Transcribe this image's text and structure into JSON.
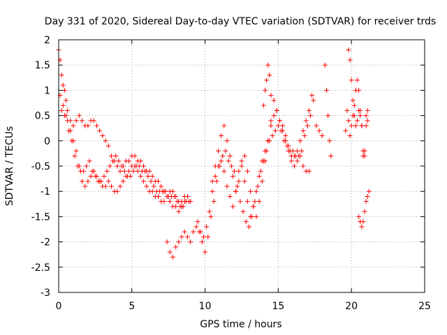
{
  "chart_data": {
    "type": "scatter",
    "title": "Day 331 of 2020, Sidereal Day-to-day VTEC variation (SDTVAR) for receiver trds",
    "xlabel": "GPS time / hours",
    "ylabel": "SDTVAR / TECUs",
    "xlim": [
      0,
      25
    ],
    "ylim": [
      -3,
      2
    ],
    "xticks": [
      "0",
      "5",
      "10",
      "15",
      "20",
      "25"
    ],
    "yticks": [
      "2",
      "1.5",
      "1",
      "0.5",
      "0",
      "-0.5",
      "-1",
      "-1.5",
      "-2",
      "-2.5",
      "-3"
    ],
    "grid": true,
    "marker": "plus",
    "series_color": "#ff0000",
    "series": [
      {
        "name": "trace-a",
        "x": [
          0.0,
          0.1,
          0.2,
          0.3,
          0.4,
          0.5,
          0.6,
          0.8,
          1.0,
          1.2,
          1.4,
          1.6,
          1.8,
          2.0,
          2.2,
          2.4,
          2.6,
          2.8,
          3.0,
          3.2,
          3.4,
          3.6,
          3.8,
          4.0,
          4.2,
          4.4,
          4.6,
          4.8,
          5.0,
          5.2,
          5.4,
          5.6,
          5.8,
          6.0,
          6.2,
          6.4,
          6.6,
          6.8,
          7.0,
          7.2,
          7.4,
          7.6,
          7.8,
          8.0,
          8.2,
          8.4,
          8.6,
          8.8,
          9.0
        ],
        "y": [
          1.8,
          1.6,
          1.3,
          1.1,
          1.0,
          0.8,
          0.6,
          0.4,
          0.3,
          0.4,
          0.5,
          0.4,
          0.3,
          0.3,
          0.4,
          0.4,
          0.3,
          0.2,
          0.1,
          0.0,
          -0.1,
          -0.3,
          -0.4,
          -0.5,
          -0.6,
          -0.5,
          -0.4,
          -0.4,
          -0.3,
          -0.3,
          -0.4,
          -0.4,
          -0.5,
          -0.6,
          -0.6,
          -0.7,
          -0.8,
          -0.8,
          -0.9,
          -1.0,
          -1.1,
          -1.0,
          -1.0,
          -1.1,
          -1.2,
          -1.2,
          -1.1,
          -1.1,
          -1.2
        ]
      },
      {
        "name": "trace-b",
        "x": [
          0.1,
          0.3,
          0.5,
          0.7,
          0.9,
          1.1,
          1.3,
          1.5,
          1.7,
          1.9,
          2.1,
          2.3,
          2.5,
          2.7,
          2.9,
          3.1,
          3.3,
          3.5,
          3.7,
          3.9,
          4.1,
          4.3,
          4.5,
          4.7,
          4.9,
          5.1,
          5.3,
          5.5,
          5.7,
          5.9,
          6.1,
          6.3,
          6.5,
          6.7,
          6.9,
          7.1,
          7.3,
          7.5,
          7.7,
          7.9,
          8.1,
          8.3,
          8.5,
          8.7,
          8.9
        ],
        "y": [
          0.9,
          0.7,
          0.5,
          0.2,
          0.0,
          -0.3,
          -0.5,
          -0.6,
          -0.6,
          -0.5,
          -0.4,
          -0.6,
          -0.7,
          -0.8,
          -0.8,
          -0.7,
          -0.6,
          -0.5,
          -0.4,
          -0.3,
          -0.4,
          -0.5,
          -0.6,
          -0.7,
          -0.7,
          -0.6,
          -0.5,
          -0.5,
          -0.6,
          -0.6,
          -0.7,
          -0.8,
          -0.9,
          -1.0,
          -1.0,
          -1.0,
          -1.0,
          -1.1,
          -1.1,
          -1.1,
          -1.2,
          -1.3,
          -1.3,
          -1.2,
          -1.2
        ]
      },
      {
        "name": "trace-c",
        "x": [
          0.2,
          0.4,
          0.6,
          0.8,
          1.0,
          1.2,
          1.4,
          1.6,
          1.8,
          2.0,
          2.2,
          2.4,
          2.6,
          2.8,
          3.0,
          3.2,
          3.4,
          3.6,
          3.8,
          4.0,
          4.2,
          4.4,
          4.6,
          4.8,
          5.0,
          5.2,
          5.4,
          5.6,
          5.8,
          6.0,
          6.2,
          6.4,
          6.6,
          6.8,
          7.0,
          7.2,
          7.4,
          7.6,
          7.8,
          8.0,
          8.2,
          8.4,
          8.6,
          8.8
        ],
        "y": [
          0.6,
          0.5,
          0.4,
          0.2,
          0.0,
          -0.2,
          -0.5,
          -0.8,
          -0.9,
          -0.8,
          -0.7,
          -0.6,
          -0.7,
          -0.8,
          -0.9,
          -0.9,
          -0.8,
          -0.9,
          -1.0,
          -1.0,
          -0.9,
          -0.8,
          -0.7,
          -0.6,
          -0.5,
          -0.5,
          -0.6,
          -0.7,
          -0.8,
          -0.9,
          -1.0,
          -1.0,
          -1.1,
          -1.1,
          -1.2,
          -1.2,
          -1.1,
          -1.2,
          -1.3,
          -1.3,
          -1.4,
          -1.3,
          -1.2,
          -1.1
        ]
      },
      {
        "name": "trace-d",
        "x": [
          7.4,
          7.6,
          7.8,
          8.0,
          8.2,
          8.4,
          8.6,
          8.8,
          9.0,
          9.2,
          9.4,
          9.6,
          9.8,
          10.0,
          10.2,
          10.4,
          10.6,
          10.8,
          11.0,
          11.2,
          11.4,
          11.6,
          11.8,
          12.0,
          12.2,
          12.4,
          12.6,
          12.8,
          13.0,
          13.2,
          13.4,
          13.6,
          13.8,
          14.0,
          14.2,
          14.4,
          14.6,
          14.8,
          15.0,
          15.2,
          15.4,
          15.6,
          15.8,
          16.0,
          16.2,
          16.4,
          16.6,
          16.8,
          17.0,
          17.2,
          17.4
        ],
        "y": [
          -2.0,
          -2.2,
          -2.3,
          -2.1,
          -2.0,
          -1.9,
          -1.8,
          -1.9,
          -2.0,
          -1.8,
          -1.7,
          -1.8,
          -2.0,
          -2.2,
          -1.9,
          -1.5,
          -1.2,
          -0.8,
          -0.5,
          -0.3,
          -0.2,
          -0.4,
          -0.5,
          -0.6,
          -0.9,
          -1.2,
          -1.4,
          -1.6,
          -1.7,
          -1.5,
          -1.2,
          -0.9,
          -0.6,
          -0.4,
          -0.2,
          0.0,
          0.1,
          0.2,
          0.3,
          0.2,
          0.0,
          -0.1,
          -0.2,
          -0.2,
          -0.3,
          -0.3,
          -0.2,
          0.1,
          0.3,
          0.5,
          0.8
        ]
      },
      {
        "name": "trace-e",
        "x": [
          9.5,
          9.7,
          9.9,
          10.1,
          10.3,
          10.5,
          10.7,
          10.9,
          11.1,
          11.3,
          11.5,
          11.7,
          11.9,
          12.1,
          12.3,
          12.5,
          12.7,
          12.9,
          13.1,
          13.3,
          13.5,
          13.7,
          13.9,
          14.1,
          14.3,
          14.5,
          14.7,
          14.9,
          15.1,
          15.3,
          15.5,
          15.7,
          15.9,
          16.1,
          16.3,
          16.5,
          16.7,
          16.9,
          17.1
        ],
        "y": [
          -1.6,
          -1.8,
          -1.9,
          -1.7,
          -1.4,
          -1.0,
          -0.7,
          -0.5,
          -0.4,
          -0.6,
          -0.9,
          -1.1,
          -1.3,
          -1.0,
          -0.6,
          -0.4,
          -0.8,
          -1.2,
          -1.5,
          -1.3,
          -1.0,
          -0.7,
          -0.4,
          -0.2,
          0.0,
          0.3,
          0.5,
          0.6,
          0.4,
          0.2,
          0.0,
          -0.2,
          -0.4,
          -0.5,
          -0.4,
          -0.3,
          -0.5,
          -0.6,
          -0.6
        ]
      },
      {
        "name": "trace-f",
        "x": [
          10.5,
          10.7,
          10.9,
          11.1,
          11.3,
          11.5,
          11.7,
          11.9,
          12.1,
          12.3,
          12.5,
          12.7,
          12.9,
          13.1,
          13.3,
          13.5,
          13.7,
          13.9,
          14.1,
          14.3,
          14.5,
          14.7,
          14.9,
          15.1,
          15.3,
          15.5,
          15.7,
          15.9,
          16.1,
          16.3,
          16.5,
          16.7,
          16.9,
          17.1,
          17.3
        ],
        "y": [
          -0.8,
          -0.5,
          -0.2,
          0.1,
          0.3,
          0.0,
          -0.3,
          -0.7,
          -1.0,
          -0.8,
          -0.5,
          -0.3,
          -0.6,
          -1.0,
          -1.3,
          -1.5,
          -1.2,
          -0.8,
          -0.4,
          0.0,
          0.4,
          0.8,
          0.6,
          0.4,
          0.3,
          0.1,
          -0.1,
          -0.3,
          -0.3,
          -0.2,
          0.0,
          0.2,
          0.4,
          0.6,
          0.9
        ]
      },
      {
        "name": "trace-g",
        "x": [
          18.2,
          18.3,
          18.4,
          18.5,
          18.6,
          19.8,
          19.9,
          20.0,
          20.1,
          20.2,
          20.3,
          20.4,
          20.5,
          20.6,
          20.7,
          20.8,
          20.9,
          21.0,
          21.1
        ],
        "y": [
          1.5,
          1.0,
          0.5,
          0.0,
          -0.3,
          1.8,
          1.6,
          1.2,
          0.8,
          0.5,
          0.3,
          0.4,
          0.6,
          0.5,
          0.3,
          -0.2,
          -0.3,
          0.5,
          0.6
        ]
      },
      {
        "name": "trace-h",
        "x": [
          19.6,
          19.7,
          19.8,
          19.9,
          20.0,
          20.1,
          20.2,
          20.3,
          20.4,
          20.5,
          20.6,
          20.7,
          20.8,
          20.9,
          21.0,
          21.1
        ],
        "y": [
          0.2,
          0.6,
          0.4,
          0.1,
          0.3,
          0.5,
          0.7,
          1.0,
          1.2,
          1.0,
          0.6,
          0.3,
          -0.3,
          -0.2,
          0.3,
          0.4
        ]
      },
      {
        "name": "trace-i",
        "x": [
          20.5,
          20.6,
          20.7,
          20.8,
          20.9,
          21.0,
          21.1,
          21.2
        ],
        "y": [
          -1.5,
          -1.6,
          -1.7,
          -1.6,
          -1.4,
          -1.2,
          -1.1,
          -1.0
        ]
      },
      {
        "name": "trace-j",
        "x": [
          14.0,
          14.1,
          14.2,
          14.3,
          14.4,
          14.5,
          17.6,
          17.8,
          18.0
        ],
        "y": [
          0.7,
          1.0,
          1.2,
          1.5,
          1.3,
          0.9,
          0.3,
          0.2,
          0.1
        ]
      }
    ]
  }
}
